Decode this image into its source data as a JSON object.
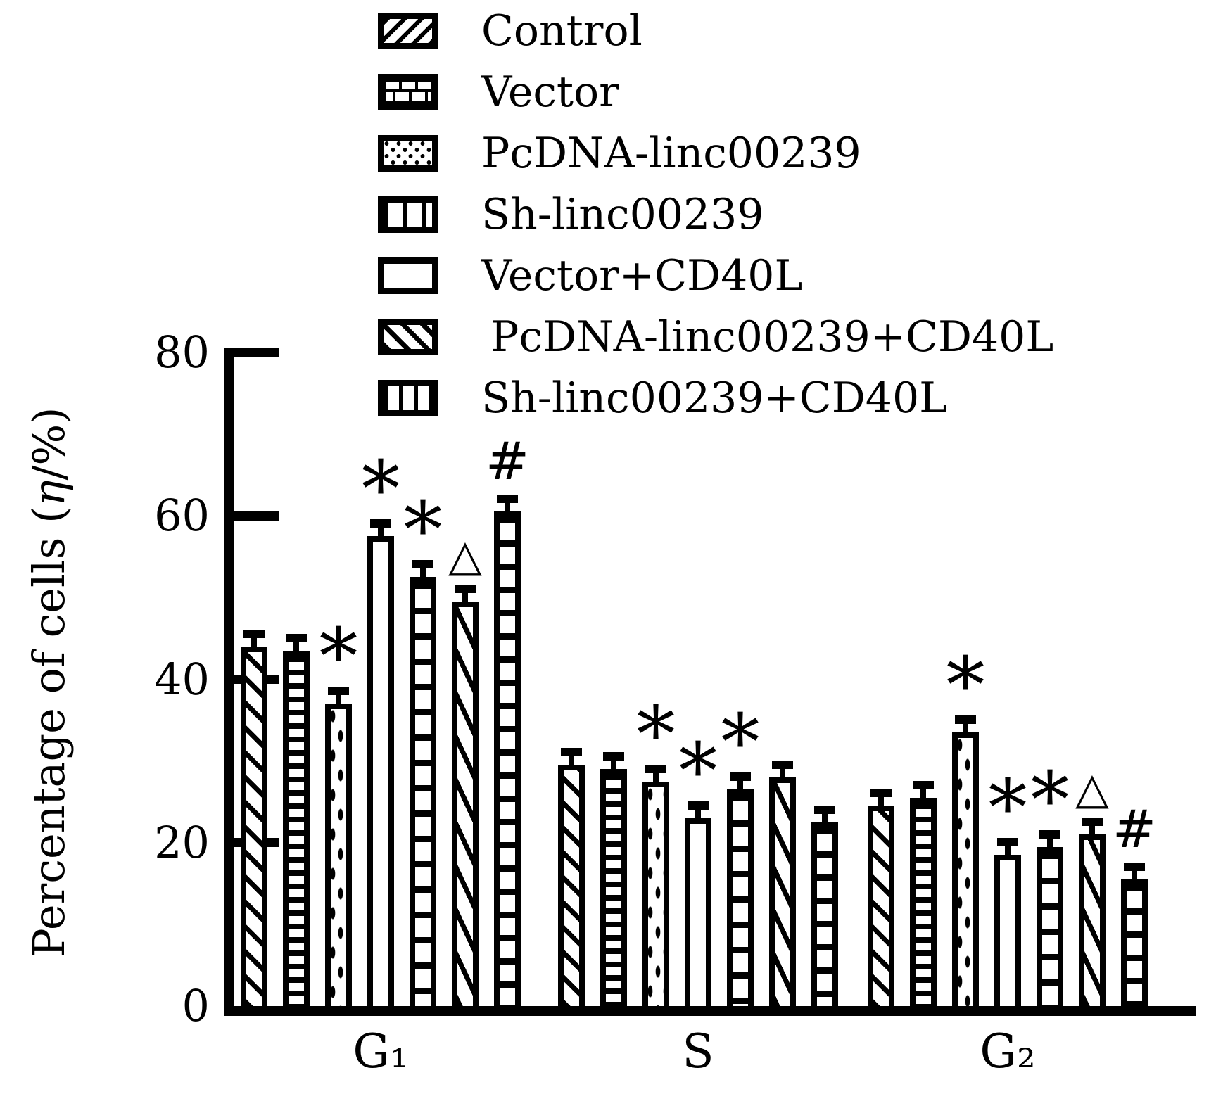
{
  "figure": {
    "background": "#ffffff",
    "ink": "#000000",
    "y_axis": {
      "title_prefix": "Percentage of cells (",
      "title_eta": "η",
      "title_suffix": "/%)",
      "ticks": [
        80,
        60,
        40,
        20,
        0
      ]
    },
    "x_axis": {
      "groups": [
        "G₁",
        "S",
        "G₂"
      ]
    },
    "legend": [
      {
        "label": "Control",
        "pattern": "diag_up"
      },
      {
        "label": "Vector",
        "pattern": "brick"
      },
      {
        "label": "PcDNA-linc00239",
        "pattern": "dots"
      },
      {
        "label": "Sh-linc00239",
        "pattern": "cells"
      },
      {
        "label": "Vector+CD40L",
        "pattern": "plain"
      },
      {
        "label": "PcDNA-linc00239+CD40L",
        "pattern": "diag_down"
      },
      {
        "label": "Sh-linc00239+CD40L",
        "pattern": "cells2"
      }
    ]
  },
  "chart_data": {
    "type": "bar",
    "title": "",
    "xlabel": "",
    "ylabel": "Percentage of cells (η/%)",
    "categories": [
      "G₁",
      "S",
      "G₂"
    ],
    "ylim": [
      0,
      80
    ],
    "yticks": [
      0,
      20,
      40,
      60,
      80
    ],
    "grid": false,
    "legend_position": "top",
    "error_cap": 1,
    "series": [
      {
        "name": "Control",
        "pattern": "diag_up",
        "values": [
          44,
          29.5,
          24.5
        ],
        "annotations": [
          "",
          "",
          ""
        ]
      },
      {
        "name": "Vector",
        "pattern": "brick",
        "values": [
          43.5,
          29,
          25.5
        ],
        "annotations": [
          "",
          "",
          ""
        ]
      },
      {
        "name": "PcDNA-linc00239",
        "pattern": "dots",
        "values": [
          37,
          27.5,
          33.5
        ],
        "annotations": [
          "*",
          "*",
          "*"
        ]
      },
      {
        "name": "Vector+CD40L",
        "pattern": "plain",
        "values": [
          57.5,
          23,
          18.5
        ],
        "annotations": [
          "*",
          "*",
          "*"
        ]
      },
      {
        "name": "Sh-linc00239",
        "pattern": "cells",
        "values": [
          52.5,
          26.5,
          19.5
        ],
        "annotations": [
          "*",
          "*",
          "*"
        ]
      },
      {
        "name": "PcDNA-linc00239+CD40L",
        "pattern": "diag_down",
        "values": [
          49.5,
          28,
          21
        ],
        "annotations": [
          "△",
          "",
          "△"
        ]
      },
      {
        "name": "Sh-linc00239+CD40L",
        "pattern": "cells2",
        "values": [
          60.5,
          22.5,
          15.5
        ],
        "annotations": [
          "#",
          "",
          "#"
        ]
      }
    ]
  }
}
